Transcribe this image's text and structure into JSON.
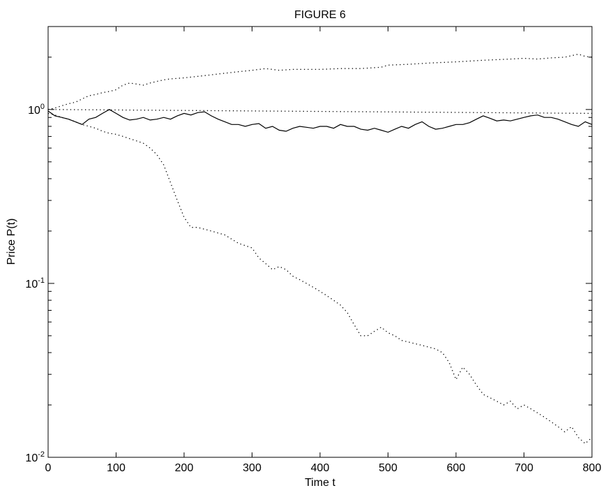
{
  "chart_data": {
    "type": "line",
    "title": "FIGURE 6",
    "xlabel": "Time t",
    "ylabel": "Price P(t)",
    "xlim": [
      0,
      800
    ],
    "ylim": [
      0.01,
      3
    ],
    "yscale": "log",
    "grid": false,
    "legend": "none",
    "x_ticks": [
      0,
      100,
      200,
      300,
      400,
      500,
      600,
      700,
      800
    ],
    "x_tick_labels": [
      "0",
      "100",
      "200",
      "300",
      "400",
      "500",
      "600",
      "700",
      "800"
    ],
    "y_ticks": [
      0.01,
      0.1,
      1
    ],
    "y_tick_labels": [
      {
        "base": "10",
        "exp": "-2"
      },
      {
        "base": "10",
        "exp": "-1"
      },
      {
        "base": "10",
        "exp": "0"
      }
    ],
    "series": [
      {
        "style": "dotted",
        "color": "#000000",
        "points": [
          [
            0,
            1.0
          ],
          [
            10,
            1.02
          ],
          [
            20,
            1.05
          ],
          [
            30,
            1.08
          ],
          [
            40,
            1.1
          ],
          [
            50,
            1.15
          ],
          [
            60,
            1.2
          ],
          [
            70,
            1.22
          ],
          [
            80,
            1.25
          ],
          [
            90,
            1.27
          ],
          [
            100,
            1.3
          ],
          [
            110,
            1.38
          ],
          [
            120,
            1.42
          ],
          [
            130,
            1.4
          ],
          [
            140,
            1.38
          ],
          [
            150,
            1.42
          ],
          [
            160,
            1.45
          ],
          [
            170,
            1.48
          ],
          [
            180,
            1.5
          ],
          [
            200,
            1.52
          ],
          [
            220,
            1.55
          ],
          [
            250,
            1.6
          ],
          [
            280,
            1.65
          ],
          [
            300,
            1.68
          ],
          [
            320,
            1.72
          ],
          [
            340,
            1.68
          ],
          [
            360,
            1.7
          ],
          [
            400,
            1.7
          ],
          [
            430,
            1.72
          ],
          [
            460,
            1.72
          ],
          [
            490,
            1.75
          ],
          [
            500,
            1.8
          ],
          [
            530,
            1.82
          ],
          [
            560,
            1.85
          ],
          [
            600,
            1.88
          ],
          [
            640,
            1.92
          ],
          [
            680,
            1.95
          ],
          [
            700,
            1.97
          ],
          [
            720,
            1.95
          ],
          [
            740,
            1.98
          ],
          [
            760,
            2.0
          ],
          [
            780,
            2.08
          ],
          [
            790,
            2.02
          ],
          [
            800,
            2.0
          ]
        ]
      },
      {
        "style": "dotted",
        "color": "#000000",
        "points": [
          [
            0,
            1.0
          ],
          [
            800,
            0.95
          ]
        ]
      },
      {
        "style": "solid",
        "color": "#000000",
        "points": [
          [
            0,
            0.98
          ],
          [
            10,
            0.92
          ],
          [
            20,
            0.9
          ],
          [
            30,
            0.88
          ],
          [
            40,
            0.85
          ],
          [
            50,
            0.82
          ],
          [
            60,
            0.88
          ],
          [
            70,
            0.9
          ],
          [
            80,
            0.95
          ],
          [
            90,
            1.0
          ],
          [
            100,
            0.95
          ],
          [
            110,
            0.9
          ],
          [
            120,
            0.87
          ],
          [
            130,
            0.88
          ],
          [
            140,
            0.9
          ],
          [
            150,
            0.87
          ],
          [
            160,
            0.88
          ],
          [
            170,
            0.9
          ],
          [
            180,
            0.88
          ],
          [
            190,
            0.92
          ],
          [
            200,
            0.95
          ],
          [
            210,
            0.93
          ],
          [
            220,
            0.96
          ],
          [
            230,
            0.97
          ],
          [
            240,
            0.92
          ],
          [
            250,
            0.88
          ],
          [
            260,
            0.85
          ],
          [
            270,
            0.82
          ],
          [
            280,
            0.82
          ],
          [
            290,
            0.8
          ],
          [
            300,
            0.82
          ],
          [
            310,
            0.83
          ],
          [
            320,
            0.78
          ],
          [
            330,
            0.8
          ],
          [
            340,
            0.76
          ],
          [
            350,
            0.75
          ],
          [
            360,
            0.78
          ],
          [
            370,
            0.8
          ],
          [
            380,
            0.79
          ],
          [
            390,
            0.78
          ],
          [
            400,
            0.8
          ],
          [
            410,
            0.8
          ],
          [
            420,
            0.78
          ],
          [
            430,
            0.82
          ],
          [
            440,
            0.8
          ],
          [
            450,
            0.8
          ],
          [
            460,
            0.77
          ],
          [
            470,
            0.76
          ],
          [
            480,
            0.78
          ],
          [
            490,
            0.76
          ],
          [
            500,
            0.74
          ],
          [
            510,
            0.77
          ],
          [
            520,
            0.8
          ],
          [
            530,
            0.78
          ],
          [
            540,
            0.82
          ],
          [
            550,
            0.85
          ],
          [
            560,
            0.8
          ],
          [
            570,
            0.77
          ],
          [
            580,
            0.78
          ],
          [
            590,
            0.8
          ],
          [
            600,
            0.82
          ],
          [
            610,
            0.82
          ],
          [
            620,
            0.84
          ],
          [
            630,
            0.88
          ],
          [
            640,
            0.92
          ],
          [
            650,
            0.89
          ],
          [
            660,
            0.86
          ],
          [
            670,
            0.87
          ],
          [
            680,
            0.86
          ],
          [
            690,
            0.88
          ],
          [
            700,
            0.9
          ],
          [
            710,
            0.92
          ],
          [
            720,
            0.93
          ],
          [
            730,
            0.9
          ],
          [
            740,
            0.9
          ],
          [
            750,
            0.88
          ],
          [
            760,
            0.85
          ],
          [
            770,
            0.82
          ],
          [
            780,
            0.8
          ],
          [
            790,
            0.85
          ],
          [
            800,
            0.82
          ]
        ]
      },
      {
        "style": "dotted",
        "color": "#000000",
        "points": [
          [
            0,
            0.95
          ],
          [
            10,
            0.93
          ],
          [
            20,
            0.9
          ],
          [
            30,
            0.88
          ],
          [
            40,
            0.85
          ],
          [
            50,
            0.82
          ],
          [
            60,
            0.8
          ],
          [
            70,
            0.78
          ],
          [
            80,
            0.75
          ],
          [
            90,
            0.73
          ],
          [
            100,
            0.72
          ],
          [
            110,
            0.7
          ],
          [
            120,
            0.68
          ],
          [
            130,
            0.66
          ],
          [
            140,
            0.64
          ],
          [
            150,
            0.6
          ],
          [
            160,
            0.55
          ],
          [
            170,
            0.48
          ],
          [
            180,
            0.38
          ],
          [
            190,
            0.3
          ],
          [
            200,
            0.24
          ],
          [
            210,
            0.21
          ],
          [
            220,
            0.21
          ],
          [
            240,
            0.2
          ],
          [
            260,
            0.19
          ],
          [
            280,
            0.17
          ],
          [
            300,
            0.16
          ],
          [
            310,
            0.14
          ],
          [
            320,
            0.13
          ],
          [
            330,
            0.12
          ],
          [
            340,
            0.125
          ],
          [
            350,
            0.12
          ],
          [
            360,
            0.11
          ],
          [
            370,
            0.105
          ],
          [
            380,
            0.1
          ],
          [
            390,
            0.095
          ],
          [
            400,
            0.09
          ],
          [
            410,
            0.085
          ],
          [
            420,
            0.08
          ],
          [
            430,
            0.075
          ],
          [
            440,
            0.068
          ],
          [
            450,
            0.058
          ],
          [
            460,
            0.05
          ],
          [
            470,
            0.05
          ],
          [
            480,
            0.053
          ],
          [
            490,
            0.056
          ],
          [
            500,
            0.052
          ],
          [
            510,
            0.05
          ],
          [
            520,
            0.047
          ],
          [
            530,
            0.046
          ],
          [
            540,
            0.045
          ],
          [
            550,
            0.044
          ],
          [
            560,
            0.043
          ],
          [
            570,
            0.042
          ],
          [
            580,
            0.04
          ],
          [
            590,
            0.035
          ],
          [
            600,
            0.028
          ],
          [
            610,
            0.033
          ],
          [
            620,
            0.03
          ],
          [
            630,
            0.026
          ],
          [
            640,
            0.023
          ],
          [
            650,
            0.022
          ],
          [
            660,
            0.021
          ],
          [
            670,
            0.02
          ],
          [
            680,
            0.021
          ],
          [
            690,
            0.019
          ],
          [
            700,
            0.02
          ],
          [
            710,
            0.019
          ],
          [
            720,
            0.018
          ],
          [
            730,
            0.017
          ],
          [
            740,
            0.016
          ],
          [
            750,
            0.015
          ],
          [
            760,
            0.014
          ],
          [
            770,
            0.015
          ],
          [
            780,
            0.013
          ],
          [
            790,
            0.012
          ],
          [
            800,
            0.013
          ]
        ]
      }
    ]
  }
}
